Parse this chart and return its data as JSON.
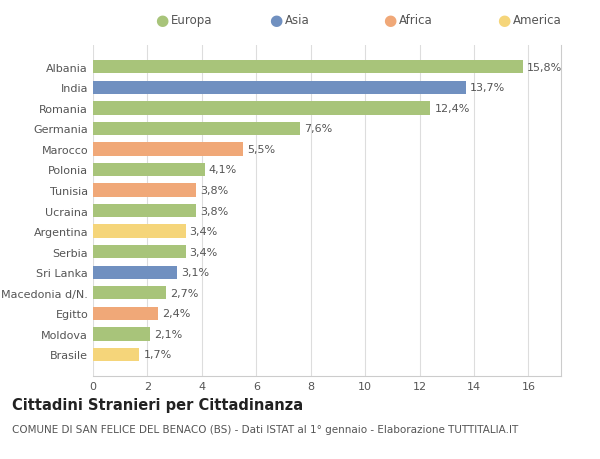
{
  "categories": [
    "Brasile",
    "Moldova",
    "Egitto",
    "Macedonia d/N.",
    "Sri Lanka",
    "Serbia",
    "Argentina",
    "Ucraina",
    "Tunisia",
    "Polonia",
    "Marocco",
    "Germania",
    "Romania",
    "India",
    "Albania"
  ],
  "values": [
    1.7,
    2.1,
    2.4,
    2.7,
    3.1,
    3.4,
    3.4,
    3.8,
    3.8,
    4.1,
    5.5,
    7.6,
    12.4,
    13.7,
    15.8
  ],
  "labels": [
    "1,7%",
    "2,1%",
    "2,4%",
    "2,7%",
    "3,1%",
    "3,4%",
    "3,4%",
    "3,8%",
    "3,8%",
    "4,1%",
    "5,5%",
    "7,6%",
    "12,4%",
    "13,7%",
    "15,8%"
  ],
  "colors": [
    "#f5d57a",
    "#a8c47a",
    "#f0a878",
    "#a8c47a",
    "#7090c0",
    "#a8c47a",
    "#f5d57a",
    "#a8c47a",
    "#f0a878",
    "#a8c47a",
    "#f0a878",
    "#a8c47a",
    "#a8c47a",
    "#7090c0",
    "#a8c47a"
  ],
  "legend_labels": [
    "Europa",
    "Asia",
    "Africa",
    "America"
  ],
  "legend_colors": [
    "#a8c47a",
    "#7090c0",
    "#f0a878",
    "#f5d57a"
  ],
  "title": "Cittadini Stranieri per Cittadinanza",
  "subtitle": "COMUNE DI SAN FELICE DEL BENACO (BS) - Dati ISTAT al 1° gennaio - Elaborazione TUTTITALIA.IT",
  "xlabel_ticks": [
    0,
    2,
    4,
    6,
    8,
    10,
    12,
    14,
    16
  ],
  "xlim": [
    0,
    17.2
  ],
  "background_color": "#ffffff",
  "grid_color": "#dddddd",
  "bar_height": 0.65,
  "label_fontsize": 8.0,
  "tick_label_fontsize": 8.0,
  "title_fontsize": 10.5,
  "subtitle_fontsize": 7.5
}
